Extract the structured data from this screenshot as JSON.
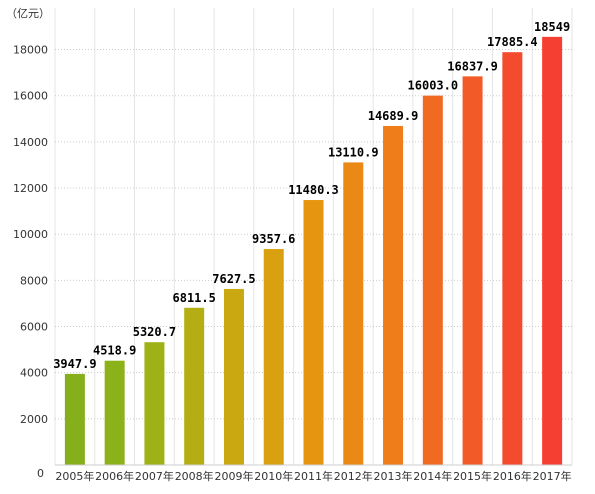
{
  "chart_data": {
    "type": "bar",
    "unit": "（亿元）",
    "categories": [
      "2005年",
      "2006年",
      "2007年",
      "2008年",
      "2009年",
      "2010年",
      "2011年",
      "2012年",
      "2013年",
      "2014年",
      "2015年",
      "2016年",
      "2017年"
    ],
    "values": [
      3947.9,
      4518.9,
      5320.7,
      6811.5,
      7627.5,
      9357.6,
      11480.3,
      13110.9,
      14689.9,
      16003.0,
      16837.9,
      17885.4,
      18549
    ],
    "value_labels": [
      "3947.9",
      "4518.9",
      "5320.7",
      "6811.5",
      "7627.5",
      "9357.6",
      "11480.3",
      "13110.9",
      "14689.9",
      "16003.0",
      "16837.9",
      "17885.4",
      "18549"
    ],
    "y_ticks": [
      0,
      2000,
      4000,
      6000,
      8000,
      10000,
      12000,
      14000,
      16000,
      18000
    ],
    "ylim": [
      0,
      19800
    ],
    "grid": true,
    "legend": "none",
    "bar_colors": [
      "#86b01b",
      "#8cb21a",
      "#9eb218",
      "#b4ae14",
      "#c9a812",
      "#d9a010",
      "#e69510",
      "#ea8a14",
      "#ee7d1a",
      "#f06a22",
      "#f25a28",
      "#f44a2e",
      "#f63f33"
    ]
  }
}
